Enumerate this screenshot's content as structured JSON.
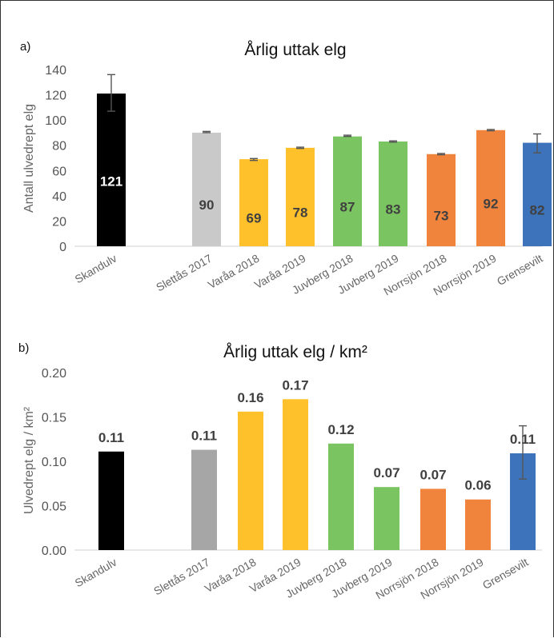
{
  "chart_data": [
    {
      "type": "bar",
      "panel_label": "a)",
      "title": "Årlig uttak elg",
      "xlabel": "",
      "ylabel": "Antall ulvedrept elg",
      "ylim": [
        0,
        140
      ],
      "yticks": [
        "0",
        "20",
        "40",
        "60",
        "80",
        "100",
        "120",
        "140"
      ],
      "categories": [
        "Skandulv",
        "Slettås 2017",
        "Varåa 2018",
        "Varåa 2019",
        "Juvberg 2018",
        "Juvberg 2019",
        "Norrsjön 2018",
        "Norrsjön 2019",
        "Grensevilt"
      ],
      "values": [
        121,
        90,
        69,
        78,
        87,
        83,
        73,
        92,
        82
      ],
      "labels": [
        "121",
        "90",
        "69",
        "78",
        "87",
        "83",
        "73",
        "92",
        "82"
      ],
      "error_low": [
        107,
        90,
        68,
        77.5,
        87,
        82.5,
        72.5,
        91.5,
        74
      ],
      "error_high": [
        136,
        91,
        69.5,
        78.5,
        88,
        83.5,
        73.5,
        92.5,
        89
      ],
      "colors": [
        "#000000",
        "#c9c9c9",
        "#ffc12b",
        "#ffc12b",
        "#7ac461",
        "#7ac461",
        "#f0843d",
        "#f0843d",
        "#3c73ba"
      ],
      "label_colors": [
        "#ffffff",
        "#404040",
        "#404040",
        "#404040",
        "#404040",
        "#404040",
        "#404040",
        "#404040",
        "#404040"
      ],
      "label_position": "inside",
      "grid": false,
      "legend": "none"
    },
    {
      "type": "bar",
      "panel_label": "b)",
      "title": "Årlig uttak elg / km²",
      "xlabel": "",
      "ylabel": "Ulvedrept elg / km²",
      "ylim": [
        0,
        0.2
      ],
      "yticks": [
        "0.00",
        "0.05",
        "0.10",
        "0.15",
        "0.20"
      ],
      "categories": [
        "Skandulv",
        "Slettås 2017",
        "Varåa 2018",
        "Varåa 2019",
        "Juvberg 2018",
        "Juvberg 2019",
        "Norrsjön 2018",
        "Norrsjön 2019",
        "Grensevilt"
      ],
      "values": [
        0.111,
        0.113,
        0.156,
        0.17,
        0.12,
        0.071,
        0.069,
        0.057,
        0.109
      ],
      "labels": [
        "0.11",
        "0.11",
        "0.16",
        "0.17",
        "0.12",
        "0.07",
        "0.07",
        "0.06",
        "0.11"
      ],
      "error_low": [
        null,
        null,
        null,
        null,
        null,
        null,
        null,
        null,
        0.08
      ],
      "error_high": [
        null,
        null,
        null,
        null,
        null,
        null,
        null,
        null,
        0.14
      ],
      "colors": [
        "#000000",
        "#a6a6a6",
        "#ffc12b",
        "#ffc12b",
        "#7ac461",
        "#7ac461",
        "#f0843d",
        "#f0843d",
        "#3c73ba"
      ],
      "label_colors": [
        "#404040",
        "#404040",
        "#404040",
        "#404040",
        "#404040",
        "#404040",
        "#404040",
        "#404040",
        "#404040"
      ],
      "label_position": "above",
      "grid": false,
      "legend": "none"
    }
  ]
}
